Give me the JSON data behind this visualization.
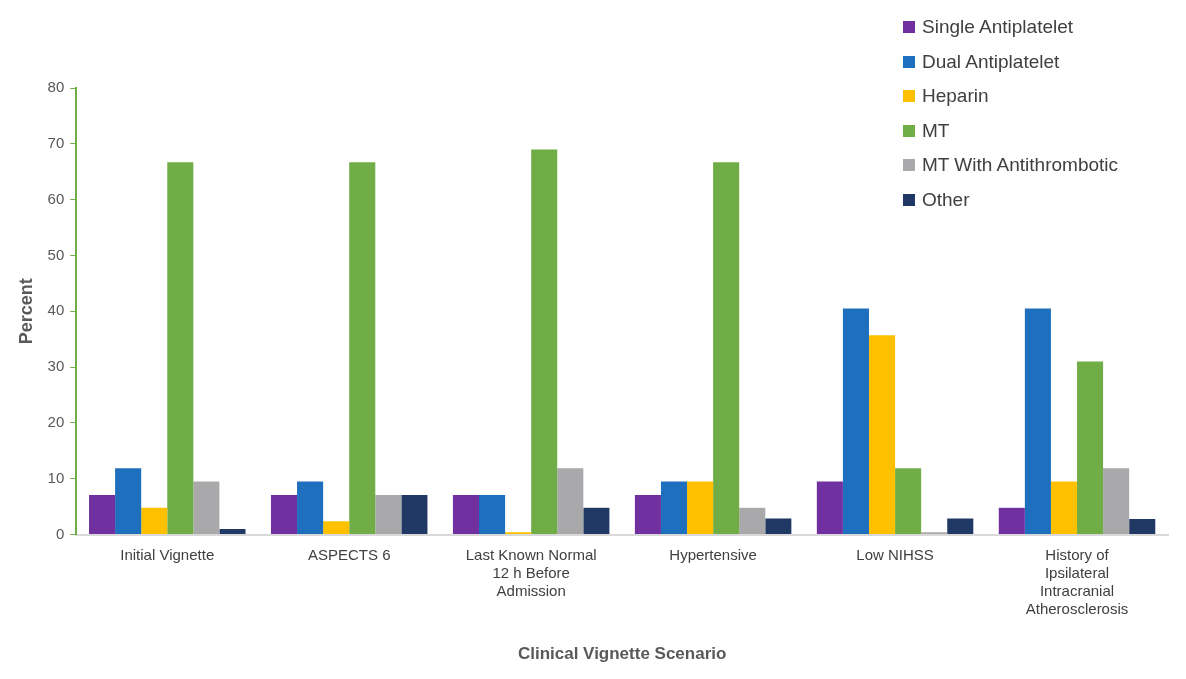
{
  "chart_data": {
    "type": "bar",
    "xlabel": "Clinical Vignette Scenario",
    "ylabel": "Percent",
    "categories": [
      "Initial Vignette",
      "ASPECTS 6",
      "Last Known Normal 12 h Before Admission",
      "Hypertensive",
      "Low NIHSS",
      "History of Ipsilateral Intracranial Atherosclerosis"
    ],
    "series": [
      {
        "name": "Single Antiplatelet",
        "color": "#7030a0",
        "values": [
          7.1,
          7.1,
          7.1,
          7.1,
          9.5,
          4.8
        ]
      },
      {
        "name": "Dual Antiplatelet",
        "color": "#1f6fbf",
        "values": [
          11.9,
          9.5,
          7.1,
          9.5,
          40.5,
          40.5
        ]
      },
      {
        "name": "Heparin",
        "color": "#ffc000",
        "values": [
          4.8,
          2.4,
          0.4,
          9.5,
          35.7,
          9.5
        ]
      },
      {
        "name": "MT",
        "color": "#70ad47",
        "values": [
          66.7,
          66.7,
          69.0,
          66.7,
          11.9,
          31.0
        ]
      },
      {
        "name": "MT With Antithrombotic",
        "color": "#a9a9ab",
        "values": [
          9.5,
          7.1,
          11.9,
          4.8,
          0.4,
          11.9
        ]
      },
      {
        "name": "Other",
        "color": "#203864",
        "values": [
          1.0,
          7.1,
          4.8,
          2.9,
          2.9,
          2.8
        ]
      }
    ],
    "ylim": [
      0,
      80
    ],
    "yticks": [
      0,
      10,
      20,
      30,
      40,
      50,
      60,
      70,
      80
    ],
    "grid": false,
    "legend": "top right"
  }
}
